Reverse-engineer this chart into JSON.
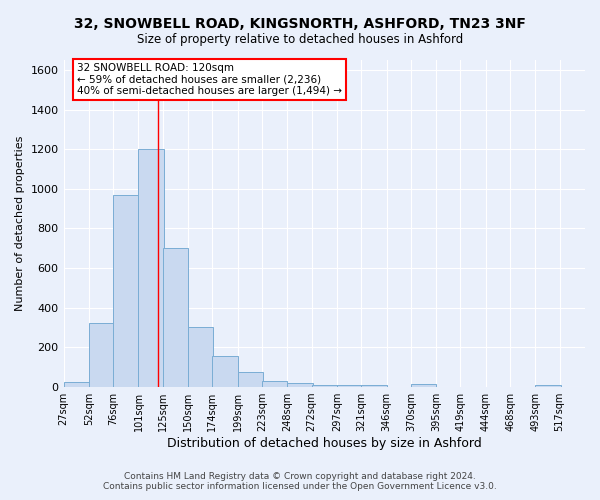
{
  "title_line1": "32, SNOWBELL ROAD, KINGSNORTH, ASHFORD, TN23 3NF",
  "title_line2": "Size of property relative to detached houses in Ashford",
  "xlabel": "Distribution of detached houses by size in Ashford",
  "ylabel": "Number of detached properties",
  "footer_line1": "Contains HM Land Registry data © Crown copyright and database right 2024.",
  "footer_line2": "Contains public sector information licensed under the Open Government Licence v3.0.",
  "annotation_line1": "32 SNOWBELL ROAD: 120sqm",
  "annotation_line2": "← 59% of detached houses are smaller (2,236)",
  "annotation_line3": "40% of semi-detached houses are larger (1,494) →",
  "bar_color": "#c9d9f0",
  "bar_edge_color": "#7aadd4",
  "background_color": "#eaf0fb",
  "grid_color": "#ffffff",
  "red_line_x": 120,
  "categories": [
    "27sqm",
    "52sqm",
    "76sqm",
    "101sqm",
    "125sqm",
    "150sqm",
    "174sqm",
    "199sqm",
    "223sqm",
    "248sqm",
    "272sqm",
    "297sqm",
    "321sqm",
    "346sqm",
    "370sqm",
    "395sqm",
    "419sqm",
    "444sqm",
    "468sqm",
    "493sqm",
    "517sqm"
  ],
  "bin_edges": [
    27,
    52,
    76,
    101,
    125,
    150,
    174,
    199,
    223,
    248,
    272,
    297,
    321,
    346,
    370,
    395,
    419,
    444,
    468,
    493,
    517
  ],
  "values": [
    28,
    325,
    970,
    1200,
    700,
    305,
    155,
    75,
    30,
    20,
    13,
    8,
    10,
    0,
    15,
    0,
    0,
    0,
    0,
    12,
    0
  ],
  "ylim": [
    0,
    1650
  ],
  "yticks": [
    0,
    200,
    400,
    600,
    800,
    1000,
    1200,
    1400,
    1600
  ]
}
